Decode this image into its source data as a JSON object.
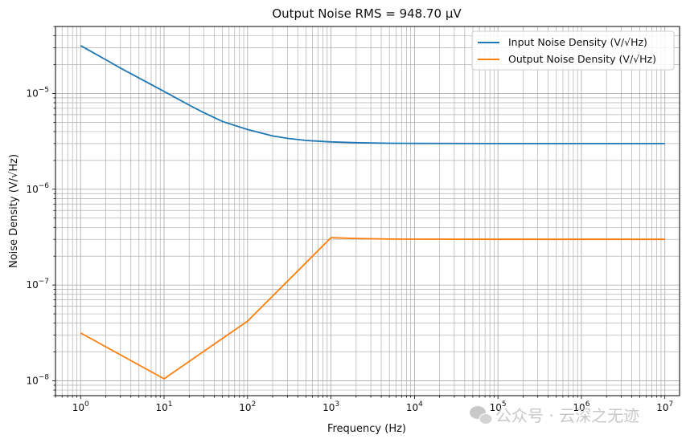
{
  "chart_data": {
    "type": "line",
    "title": "Output Noise RMS = 948.70 µV",
    "xlabel": "Frequency (Hz)",
    "ylabel": "Noise Density (V/√Hz)",
    "xscale": "log",
    "yscale": "log",
    "xlim": [
      0.5,
      15000000
    ],
    "ylim": [
      7e-09,
      5e-05
    ],
    "x_tick_labels": [
      {
        "base": "10",
        "exp": "0"
      },
      {
        "base": "10",
        "exp": "1"
      },
      {
        "base": "10",
        "exp": "2"
      },
      {
        "base": "10",
        "exp": "3"
      },
      {
        "base": "10",
        "exp": "4"
      },
      {
        "base": "10",
        "exp": "5"
      },
      {
        "base": "10",
        "exp": "6"
      },
      {
        "base": "10",
        "exp": "7"
      }
    ],
    "y_tick_labels": [
      {
        "base": "10",
        "exp": "−8"
      },
      {
        "base": "10",
        "exp": "−7"
      },
      {
        "base": "10",
        "exp": "−6"
      },
      {
        "base": "10",
        "exp": "−5"
      }
    ],
    "grid": true,
    "legend_position": "top-right",
    "series": [
      {
        "name": "Input Noise Density (V/√Hz)",
        "color": "#1f77b4",
        "x": [
          1,
          2,
          3,
          5,
          10,
          20,
          30,
          50,
          100,
          200,
          300,
          500,
          1000,
          2000,
          5000,
          10000,
          100000,
          1000000,
          10000000
        ],
        "y": [
          3.16e-05,
          2.25e-05,
          1.84e-05,
          1.45e-05,
          1.05e-05,
          7.55e-06,
          6.29e-06,
          5.1e-06,
          4.2e-06,
          3.6e-06,
          3.4e-06,
          3.23e-06,
          3.12e-06,
          3.06e-06,
          3.02e-06,
          3.01e-06,
          3e-06,
          3e-06,
          3e-06
        ]
      },
      {
        "name": "Output Noise Density (V/√Hz)",
        "color": "#ff7f0e",
        "x": [
          1,
          10,
          100,
          1000,
          2000,
          5000,
          10000,
          100000,
          1000000,
          10000000
        ],
        "y": [
          3.16e-08,
          1.05e-08,
          4.2e-08,
          3.12e-07,
          3.06e-07,
          3.02e-07,
          3.01e-07,
          3e-07,
          3e-07,
          3e-07
        ]
      }
    ]
  },
  "watermark": "公众号 · 云深之无迹"
}
